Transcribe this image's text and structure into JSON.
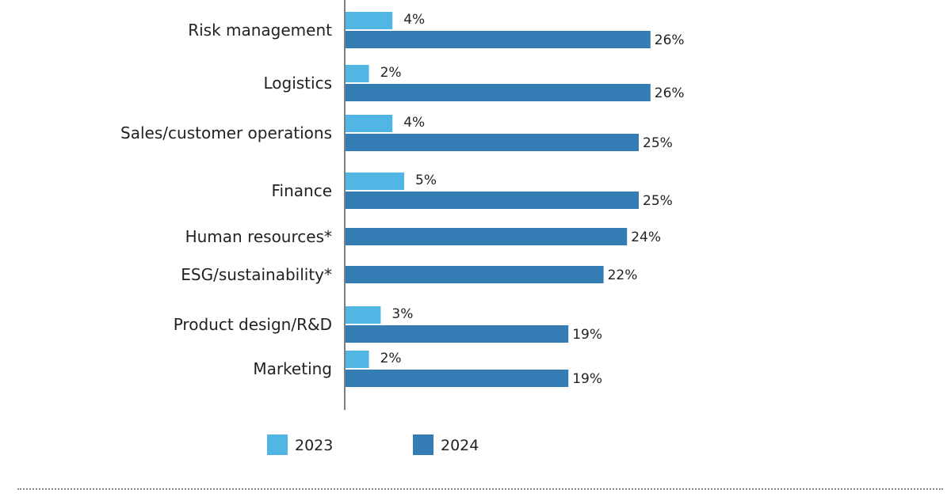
{
  "colors": {
    "2023": "#52b6e4",
    "2024": "#347cb4",
    "axis": "#555555"
  },
  "chart_data": {
    "type": "bar",
    "orientation": "horizontal",
    "categories": [
      "Risk management",
      "Logistics",
      "Sales/customer operations",
      "Finance",
      "Human resources*",
      "ESG/sustainability*",
      "Product design/R&D",
      "Marketing"
    ],
    "series": [
      {
        "name": "2023",
        "values": [
          4,
          2,
          4,
          5,
          null,
          null,
          3,
          2
        ],
        "labels": [
          "4%",
          "2%",
          "4%",
          "5%",
          null,
          null,
          "3%",
          "2%"
        ]
      },
      {
        "name": "2024",
        "values": [
          26,
          26,
          25,
          25,
          24,
          22,
          19,
          19
        ],
        "labels": [
          "26%",
          "26%",
          "25%",
          "25%",
          "24%",
          "22%",
          "19%",
          "19%"
        ]
      }
    ],
    "xlim": [
      0,
      30
    ],
    "grid": false,
    "legend": "bottom"
  }
}
